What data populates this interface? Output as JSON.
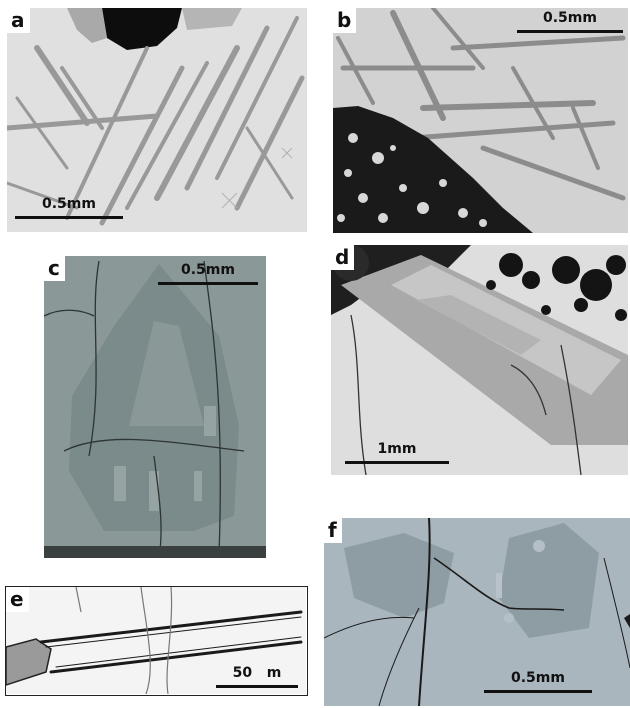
{
  "figure": {
    "panels": [
      {
        "label": "a",
        "scale": "0.5mm"
      },
      {
        "label": "b",
        "scale": "0.5mm"
      },
      {
        "label": "c",
        "scale": "0.5mm"
      },
      {
        "label": "d",
        "scale": "1mm"
      },
      {
        "label": "e",
        "scale": "50   m"
      },
      {
        "label": "f",
        "scale": "0.5mm"
      }
    ]
  },
  "colors": {
    "matrix_a": "#e2e2e2",
    "matrix_b": "#d4d4d4",
    "crystal_grey": "#8f8f8f",
    "panel_c_bg": "#8a9898",
    "panel_f_bg": "#a9b6bd",
    "pore_black": "#0d0d0d"
  }
}
